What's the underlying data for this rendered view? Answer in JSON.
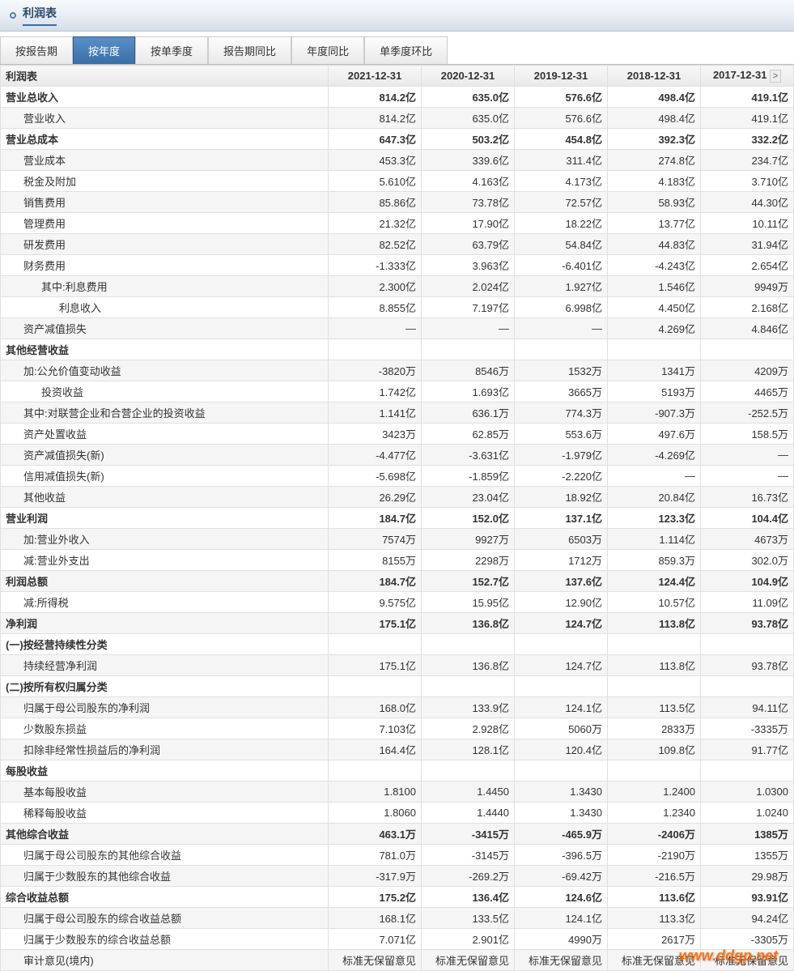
{
  "header": {
    "title": "利润表"
  },
  "tabs": {
    "items": [
      {
        "label": "按报告期"
      },
      {
        "label": "按年度"
      },
      {
        "label": "按单季度"
      },
      {
        "label": "报告期同比"
      },
      {
        "label": "年度同比"
      },
      {
        "label": "单季度环比"
      }
    ],
    "active_index": 1
  },
  "table": {
    "header_label": "利润表",
    "columns": [
      "2021-12-31",
      "2020-12-31",
      "2019-12-31",
      "2018-12-31",
      "2017-12-31"
    ],
    "rows": [
      {
        "label": "营业总收入",
        "indent": 0,
        "bold": true,
        "values": [
          "814.2亿",
          "635.0亿",
          "576.6亿",
          "498.4亿",
          "419.1亿"
        ]
      },
      {
        "label": "营业收入",
        "indent": 1,
        "bold": false,
        "values": [
          "814.2亿",
          "635.0亿",
          "576.6亿",
          "498.4亿",
          "419.1亿"
        ]
      },
      {
        "label": "营业总成本",
        "indent": 0,
        "bold": true,
        "values": [
          "647.3亿",
          "503.2亿",
          "454.8亿",
          "392.3亿",
          "332.2亿"
        ]
      },
      {
        "label": "营业成本",
        "indent": 1,
        "bold": false,
        "values": [
          "453.3亿",
          "339.6亿",
          "311.4亿",
          "274.8亿",
          "234.7亿"
        ]
      },
      {
        "label": "税金及附加",
        "indent": 1,
        "bold": false,
        "values": [
          "5.610亿",
          "4.163亿",
          "4.173亿",
          "4.183亿",
          "3.710亿"
        ]
      },
      {
        "label": "销售费用",
        "indent": 1,
        "bold": false,
        "values": [
          "85.86亿",
          "73.78亿",
          "72.57亿",
          "58.93亿",
          "44.30亿"
        ]
      },
      {
        "label": "管理费用",
        "indent": 1,
        "bold": false,
        "values": [
          "21.32亿",
          "17.90亿",
          "18.22亿",
          "13.77亿",
          "10.11亿"
        ]
      },
      {
        "label": "研发费用",
        "indent": 1,
        "bold": false,
        "values": [
          "82.52亿",
          "63.79亿",
          "54.84亿",
          "44.83亿",
          "31.94亿"
        ]
      },
      {
        "label": "财务费用",
        "indent": 1,
        "bold": false,
        "values": [
          "-1.333亿",
          "3.963亿",
          "-6.401亿",
          "-4.243亿",
          "2.654亿"
        ]
      },
      {
        "label": "其中:利息费用",
        "indent": 2,
        "bold": false,
        "values": [
          "2.300亿",
          "2.024亿",
          "1.927亿",
          "1.546亿",
          "9949万"
        ]
      },
      {
        "label": "利息收入",
        "indent": 3,
        "bold": false,
        "values": [
          "8.855亿",
          "7.197亿",
          "6.998亿",
          "4.450亿",
          "2.168亿"
        ]
      },
      {
        "label": "资产减值损失",
        "indent": 1,
        "bold": false,
        "values": [
          "—",
          "—",
          "—",
          "4.269亿",
          "4.846亿"
        ]
      },
      {
        "label": "其他经营收益",
        "indent": 0,
        "bold": true,
        "values": [
          "",
          "",
          "",
          "",
          ""
        ]
      },
      {
        "label": "加:公允价值变动收益",
        "indent": 1,
        "bold": false,
        "values": [
          "-3820万",
          "8546万",
          "1532万",
          "1341万",
          "4209万"
        ]
      },
      {
        "label": "投资收益",
        "indent": 2,
        "bold": false,
        "values": [
          "1.742亿",
          "1.693亿",
          "3665万",
          "5193万",
          "4465万"
        ]
      },
      {
        "label": "其中:对联营企业和合营企业的投资收益",
        "indent": 1,
        "bold": false,
        "values": [
          "1.141亿",
          "636.1万",
          "774.3万",
          "-907.3万",
          "-252.5万"
        ]
      },
      {
        "label": "资产处置收益",
        "indent": 1,
        "bold": false,
        "values": [
          "3423万",
          "62.85万",
          "553.6万",
          "497.6万",
          "158.5万"
        ]
      },
      {
        "label": "资产减值损失(新)",
        "indent": 1,
        "bold": false,
        "values": [
          "-4.477亿",
          "-3.631亿",
          "-1.979亿",
          "-4.269亿",
          "—"
        ]
      },
      {
        "label": "信用减值损失(新)",
        "indent": 1,
        "bold": false,
        "values": [
          "-5.698亿",
          "-1.859亿",
          "-2.220亿",
          "—",
          "—"
        ]
      },
      {
        "label": "其他收益",
        "indent": 1,
        "bold": false,
        "values": [
          "26.29亿",
          "23.04亿",
          "18.92亿",
          "20.84亿",
          "16.73亿"
        ]
      },
      {
        "label": "营业利润",
        "indent": 0,
        "bold": true,
        "values": [
          "184.7亿",
          "152.0亿",
          "137.1亿",
          "123.3亿",
          "104.4亿"
        ]
      },
      {
        "label": "加:营业外收入",
        "indent": 1,
        "bold": false,
        "values": [
          "7574万",
          "9927万",
          "6503万",
          "1.114亿",
          "4673万"
        ]
      },
      {
        "label": "减:营业外支出",
        "indent": 1,
        "bold": false,
        "values": [
          "8155万",
          "2298万",
          "1712万",
          "859.3万",
          "302.0万"
        ]
      },
      {
        "label": "利润总额",
        "indent": 0,
        "bold": true,
        "values": [
          "184.7亿",
          "152.7亿",
          "137.6亿",
          "124.4亿",
          "104.9亿"
        ]
      },
      {
        "label": "减:所得税",
        "indent": 1,
        "bold": false,
        "values": [
          "9.575亿",
          "15.95亿",
          "12.90亿",
          "10.57亿",
          "11.09亿"
        ]
      },
      {
        "label": "净利润",
        "indent": 0,
        "bold": true,
        "values": [
          "175.1亿",
          "136.8亿",
          "124.7亿",
          "113.8亿",
          "93.78亿"
        ]
      },
      {
        "label": "(一)按经营持续性分类",
        "indent": 0,
        "bold": true,
        "values": [
          "",
          "",
          "",
          "",
          ""
        ]
      },
      {
        "label": "持续经营净利润",
        "indent": 1,
        "bold": false,
        "values": [
          "175.1亿",
          "136.8亿",
          "124.7亿",
          "113.8亿",
          "93.78亿"
        ]
      },
      {
        "label": "(二)按所有权归属分类",
        "indent": 0,
        "bold": true,
        "values": [
          "",
          "",
          "",
          "",
          ""
        ]
      },
      {
        "label": "归属于母公司股东的净利润",
        "indent": 1,
        "bold": false,
        "values": [
          "168.0亿",
          "133.9亿",
          "124.1亿",
          "113.5亿",
          "94.11亿"
        ]
      },
      {
        "label": "少数股东损益",
        "indent": 1,
        "bold": false,
        "values": [
          "7.103亿",
          "2.928亿",
          "5060万",
          "2833万",
          "-3335万"
        ]
      },
      {
        "label": "扣除非经常性损益后的净利润",
        "indent": 1,
        "bold": false,
        "values": [
          "164.4亿",
          "128.1亿",
          "120.4亿",
          "109.8亿",
          "91.77亿"
        ]
      },
      {
        "label": "每股收益",
        "indent": 0,
        "bold": true,
        "values": [
          "",
          "",
          "",
          "",
          ""
        ]
      },
      {
        "label": "基本每股收益",
        "indent": 1,
        "bold": false,
        "values": [
          "1.8100",
          "1.4450",
          "1.3430",
          "1.2400",
          "1.0300"
        ]
      },
      {
        "label": "稀释每股收益",
        "indent": 1,
        "bold": false,
        "values": [
          "1.8060",
          "1.4440",
          "1.3430",
          "1.2340",
          "1.0240"
        ]
      },
      {
        "label": "其他综合收益",
        "indent": 0,
        "bold": true,
        "values": [
          "463.1万",
          "-3415万",
          "-465.9万",
          "-2406万",
          "1385万"
        ]
      },
      {
        "label": "归属于母公司股东的其他综合收益",
        "indent": 1,
        "bold": false,
        "values": [
          "781.0万",
          "-3145万",
          "-396.5万",
          "-2190万",
          "1355万"
        ]
      },
      {
        "label": "归属于少数股东的其他综合收益",
        "indent": 1,
        "bold": false,
        "values": [
          "-317.9万",
          "-269.2万",
          "-69.42万",
          "-216.5万",
          "29.98万"
        ]
      },
      {
        "label": "综合收益总额",
        "indent": 0,
        "bold": true,
        "values": [
          "175.2亿",
          "136.4亿",
          "124.6亿",
          "113.6亿",
          "93.91亿"
        ]
      },
      {
        "label": "归属于母公司股东的综合收益总额",
        "indent": 1,
        "bold": false,
        "values": [
          "168.1亿",
          "133.5亿",
          "124.1亿",
          "113.3亿",
          "94.24亿"
        ]
      },
      {
        "label": "归属于少数股东的综合收益总额",
        "indent": 1,
        "bold": false,
        "values": [
          "7.071亿",
          "2.901亿",
          "4990万",
          "2617万",
          "-3305万"
        ]
      },
      {
        "label": "审计意见(境内)",
        "indent": 1,
        "bold": false,
        "values": [
          "标准无保留意见",
          "标准无保留意见",
          "标准无保留意见",
          "标准无保留意见",
          "标准无保留意见"
        ]
      }
    ]
  },
  "watermark": "www.ddgp.net",
  "colors": {
    "header_gradient_top": "#f7fafd",
    "header_gradient_bottom": "#d4dde7",
    "header_text": "#2c4a6b",
    "tab_active_top": "#5b8fc7",
    "tab_active_bottom": "#3a6ea5",
    "border": "#e0e0e0",
    "alt_row": "#f5f5f5",
    "watermark": "#ff6600"
  }
}
